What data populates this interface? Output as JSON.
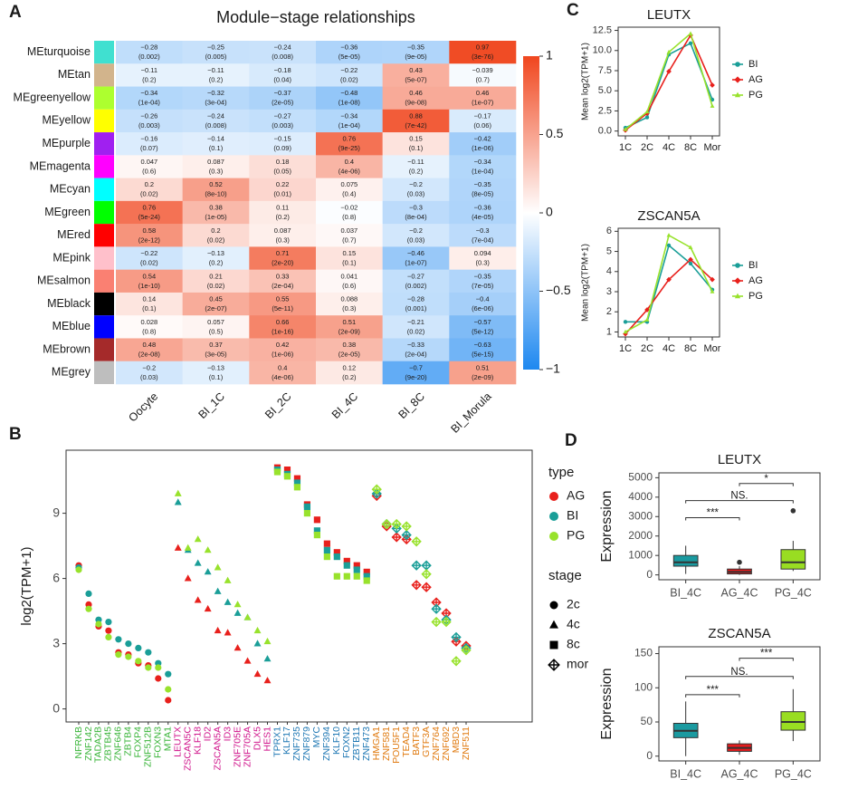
{
  "chart_data": [
    {
      "type": "heatmap",
      "panel": "A",
      "title": "Module−stage relationships",
      "columns": [
        "Oocyte",
        "BI_1C",
        "BI_2C",
        "BI_4C",
        "BI_8C",
        "BI_Morula"
      ],
      "rows": [
        {
          "name": "MEturquoise",
          "color": "#40e0d0",
          "values": [
            -0.28,
            -0.25,
            -0.24,
            -0.36,
            -0.35,
            0.97
          ],
          "value_labels": [
            "−0.28",
            "−0.25",
            "−0.24",
            "−0.36",
            "−0.35",
            "0.97"
          ],
          "p_labels": [
            "(0.002)",
            "(0.005)",
            "(0.008)",
            "(5e-05)",
            "(9e-05)",
            "(3e-76)"
          ]
        },
        {
          "name": "MEtan",
          "color": "#d2b48c",
          "values": [
            -0.11,
            -0.11,
            -0.18,
            -0.22,
            0.43,
            -0.039
          ],
          "value_labels": [
            "−0.11",
            "−0.11",
            "−0.18",
            "−0.22",
            "0.43",
            "−0.039"
          ],
          "p_labels": [
            "(0.2)",
            "(0.2)",
            "(0.04)",
            "(0.02)",
            "(5e-07)",
            "(0.7)"
          ]
        },
        {
          "name": "MEgreenyellow",
          "color": "#adff2f",
          "values": [
            -0.34,
            -0.32,
            -0.37,
            -0.48,
            0.46,
            0.46
          ],
          "value_labels": [
            "−0.34",
            "−0.32",
            "−0.37",
            "−0.48",
            "0.46",
            "0.46"
          ],
          "p_labels": [
            "(1e-04)",
            "(3e-04)",
            "(2e-05)",
            "(1e-08)",
            "(9e-08)",
            "(1e-07)"
          ]
        },
        {
          "name": "MEyellow",
          "color": "#ffff00",
          "values": [
            -0.26,
            -0.24,
            -0.27,
            -0.34,
            0.88,
            -0.17
          ],
          "value_labels": [
            "−0.26",
            "−0.24",
            "−0.27",
            "−0.34",
            "0.88",
            "−0.17"
          ],
          "p_labels": [
            "(0.003)",
            "(0.008)",
            "(0.003)",
            "(1e-04)",
            "(7e-42)",
            "(0.06)"
          ]
        },
        {
          "name": "MEpurple",
          "color": "#a020f0",
          "values": [
            -0.16,
            -0.14,
            -0.15,
            0.76,
            0.15,
            -0.42
          ],
          "value_labels": [
            "−0.16",
            "−0.14",
            "−0.15",
            "0.76",
            "0.15",
            "−0.42"
          ],
          "p_labels": [
            "(0.07)",
            "(0.1)",
            "(0.09)",
            "(9e-25)",
            "(0.1)",
            "(1e-06)"
          ]
        },
        {
          "name": "MEmagenta",
          "color": "#ff00ff",
          "values": [
            0.047,
            0.087,
            0.18,
            0.4,
            -0.11,
            -0.34
          ],
          "value_labels": [
            "0.047",
            "0.087",
            "0.18",
            "0.4",
            "−0.11",
            "−0.34"
          ],
          "p_labels": [
            "(0.6)",
            "(0.3)",
            "(0.05)",
            "(4e-06)",
            "(0.2)",
            "(1e-04)"
          ]
        },
        {
          "name": "MEcyan",
          "color": "#00ffff",
          "values": [
            0.2,
            0.52,
            0.22,
            0.075,
            -0.2,
            -0.35
          ],
          "value_labels": [
            "0.2",
            "0.52",
            "0.22",
            "0.075",
            "−0.2",
            "−0.35"
          ],
          "p_labels": [
            "(0.02)",
            "(8e-10)",
            "(0.01)",
            "(0.4)",
            "(0.03)",
            "(8e-05)"
          ]
        },
        {
          "name": "MEgreen",
          "color": "#00ff00",
          "values": [
            0.76,
            0.38,
            0.11,
            -0.02,
            -0.3,
            -0.36
          ],
          "value_labels": [
            "0.76",
            "0.38",
            "0.11",
            "−0.02",
            "−0.3",
            "−0.36"
          ],
          "p_labels": [
            "(5e-24)",
            "(1e-05)",
            "(0.2)",
            "(0.8)",
            "(8e-04)",
            "(4e-05)"
          ]
        },
        {
          "name": "MEred",
          "color": "#ff0000",
          "values": [
            0.58,
            0.2,
            0.087,
            0.037,
            -0.2,
            -0.3
          ],
          "value_labels": [
            "0.58",
            "0.2",
            "0.087",
            "0.037",
            "−0.2",
            "−0.3"
          ],
          "p_labels": [
            "(2e-12)",
            "(0.02)",
            "(0.3)",
            "(0.7)",
            "(0.03)",
            "(7e-04)"
          ]
        },
        {
          "name": "MEpink",
          "color": "#ffc0cb",
          "values": [
            -0.22,
            -0.13,
            0.71,
            0.15,
            -0.46,
            0.094
          ],
          "value_labels": [
            "−0.22",
            "−0.13",
            "0.71",
            "0.15",
            "−0.46",
            "0.094"
          ],
          "p_labels": [
            "(0.02)",
            "(0.2)",
            "(2e-20)",
            "(0.1)",
            "(1e-07)",
            "(0.3)"
          ]
        },
        {
          "name": "MEsalmon",
          "color": "#fa8072",
          "values": [
            0.54,
            0.21,
            0.33,
            0.041,
            -0.27,
            -0.35
          ],
          "value_labels": [
            "0.54",
            "0.21",
            "0.33",
            "0.041",
            "−0.27",
            "−0.35"
          ],
          "p_labels": [
            "(1e-10)",
            "(0.02)",
            "(2e-04)",
            "(0.6)",
            "(0.002)",
            "(7e-05)"
          ]
        },
        {
          "name": "MEblack",
          "color": "#000000",
          "values": [
            0.14,
            0.45,
            0.55,
            0.088,
            -0.28,
            -0.4
          ],
          "value_labels": [
            "0.14",
            "0.45",
            "0.55",
            "0.088",
            "−0.28",
            "−0.4"
          ],
          "p_labels": [
            "(0.1)",
            "(2e-07)",
            "(5e-11)",
            "(0.3)",
            "(0.001)",
            "(6e-06)"
          ]
        },
        {
          "name": "MEblue",
          "color": "#0000ff",
          "values": [
            0.028,
            0.057,
            0.66,
            0.51,
            -0.21,
            -0.57
          ],
          "value_labels": [
            "0.028",
            "0.057",
            "0.66",
            "0.51",
            "−0.21",
            "−0.57"
          ],
          "p_labels": [
            "(0.8)",
            "(0.5)",
            "(1e-16)",
            "(2e-09)",
            "(0.02)",
            "(5e-12)"
          ]
        },
        {
          "name": "MEbrown",
          "color": "#a52a2a",
          "values": [
            0.48,
            0.37,
            0.42,
            0.38,
            -0.33,
            -0.63
          ],
          "value_labels": [
            "0.48",
            "0.37",
            "0.42",
            "0.38",
            "−0.33",
            "−0.63"
          ],
          "p_labels": [
            "(2e-08)",
            "(3e-05)",
            "(1e-06)",
            "(2e-05)",
            "(2e-04)",
            "(5e-15)"
          ]
        },
        {
          "name": "MEgrey",
          "color": "#bebebe",
          "values": [
            -0.2,
            -0.13,
            0.4,
            0.12,
            -0.7,
            0.51
          ],
          "value_labels": [
            "−0.2",
            "−0.13",
            "0.4",
            "0.12",
            "−0.7",
            "0.51"
          ],
          "p_labels": [
            "(0.03)",
            "(0.1)",
            "(4e-06)",
            "(0.2)",
            "(9e-20)",
            "(2e-09)"
          ]
        }
      ],
      "colorbar": {
        "lim": [
          -1,
          1
        ],
        "colors": [
          "#1e88f0",
          "#ffffff",
          "#f0461e"
        ],
        "ticks": [
          1,
          0.5,
          0,
          {
            "value": -0.5,
            "label": "−0.5"
          },
          {
            "value": -1,
            "label": "−1"
          }
        ]
      }
    },
    {
      "type": "dot",
      "panel": "B",
      "ylabel": "log2(TPM+1)",
      "ylim": [
        -0.6,
        11.9
      ],
      "yticks": [
        0,
        3,
        6,
        9
      ],
      "series_title": "type",
      "stage_title": "stage",
      "series": [
        {
          "name": "AG",
          "color": "#e8201c",
          "values": [
            6.6,
            4.8,
            3.8,
            3.6,
            2.6,
            2.5,
            2.1,
            2.0,
            1.4,
            0.4,
            7.4,
            6.0,
            5.0,
            4.6,
            3.6,
            3.5,
            2.8,
            2.2,
            1.6,
            1.3,
            11.1,
            11.0,
            10.6,
            9.4,
            8.7,
            7.6,
            7.2,
            6.8,
            6.6,
            6.3,
            9.8,
            8.4,
            7.9,
            7.8,
            5.7,
            5.6,
            4.9,
            4.4,
            3.1,
            2.9
          ]
        },
        {
          "name": "BI",
          "color": "#1a9e98",
          "values": [
            6.5,
            5.3,
            4.1,
            4.0,
            3.2,
            3.0,
            2.8,
            2.6,
            2.1,
            1.6,
            9.5,
            7.3,
            6.7,
            6.3,
            5.4,
            4.9,
            4.4,
            4.2,
            3.0,
            2.3,
            11.0,
            10.8,
            10.4,
            9.3,
            8.2,
            7.3,
            7.0,
            6.6,
            6.4,
            6.1,
            9.9,
            8.5,
            8.3,
            8.0,
            6.6,
            6.6,
            4.6,
            4.1,
            3.3,
            2.8
          ]
        },
        {
          "name": "PG",
          "color": "#98e22c",
          "values": [
            6.4,
            4.6,
            3.9,
            3.3,
            2.5,
            2.4,
            2.2,
            1.9,
            1.9,
            0.9,
            9.9,
            7.4,
            7.8,
            7.3,
            6.5,
            5.9,
            4.8,
            4.2,
            3.6,
            3.1,
            10.9,
            10.7,
            10.2,
            9.0,
            8.0,
            7.0,
            6.1,
            6.1,
            6.1,
            5.9,
            10.1,
            8.5,
            8.5,
            8.4,
            7.7,
            6.2,
            4.0,
            4.0,
            2.2,
            2.7
          ]
        }
      ],
      "stages": [
        {
          "name": "2c",
          "marker": "circle",
          "label_color": "#3ab53a",
          "categories": [
            "NFRKB",
            "ZNF142",
            "TADA2B",
            "ZBTB45",
            "ZNF646",
            "ZBTB4",
            "FOXP4",
            "ZNF512B",
            "FOXN3",
            "MTA1"
          ]
        },
        {
          "name": "4c",
          "marker": "triangle",
          "label_color": "#d0168c",
          "categories": [
            "LEUTX",
            "ZSCAN5C",
            "KLF18",
            "ID2",
            "ZSCAN5A",
            "ID3",
            "ZNF705E",
            "ZNF705A",
            "DLX5",
            "HES1"
          ]
        },
        {
          "name": "8c",
          "marker": "square",
          "label_color": "#1f78b4",
          "categories": [
            "TPRX1",
            "KLF17",
            "ZNF735",
            "ZNF879",
            "MYC",
            "ZNF394",
            "KLF10",
            "FOXN2",
            "ZBTB11",
            "ZNF473"
          ]
        },
        {
          "name": "mor",
          "marker": "diamondplus",
          "label_color": "#e07b12",
          "categories": [
            "HMGA1",
            "ZNF581",
            "POU5F1",
            "TEAD4",
            "BATF3",
            "GTF3A",
            "ZNF764",
            "ZNF692",
            "MBD3",
            "ZNF511"
          ]
        }
      ]
    },
    {
      "type": "line",
      "panel": "C",
      "title": "LEUTX",
      "ylabel": "Mean log2(TPM+1)",
      "categories": [
        "1C",
        "2C",
        "4C",
        "8C",
        "Mor"
      ],
      "ylim": [
        -0.6,
        12.9
      ],
      "yticks": [
        {
          "value": 0,
          "label": "0.0"
        },
        2.5,
        {
          "value": 5,
          "label": "5.0"
        },
        7.5,
        {
          "value": 10,
          "label": "10.0"
        },
        12.5
      ],
      "series": [
        {
          "name": "BI",
          "color": "#1a9e98",
          "marker": "circle",
          "values": [
            0.4,
            1.7,
            9.5,
            10.9,
            3.9
          ]
        },
        {
          "name": "AG",
          "color": "#e8201c",
          "marker": "diamond",
          "values": [
            0.1,
            2.2,
            7.4,
            11.9,
            5.7
          ]
        },
        {
          "name": "PG",
          "color": "#98e22c",
          "marker": "triangle",
          "values": [
            0.2,
            2.4,
            9.8,
            12.1,
            3.1
          ]
        }
      ]
    },
    {
      "type": "line",
      "title": "ZSCAN5A",
      "ylabel": "Mean log2(TPM+1)",
      "categories": [
        "1C",
        "2C",
        "4C",
        "8C",
        "Mor"
      ],
      "ylim": [
        0.75,
        6.15
      ],
      "yticks": [
        1,
        2,
        3,
        4,
        5,
        6
      ],
      "series": [
        {
          "name": "BI",
          "color": "#1a9e98",
          "marker": "circle",
          "values": [
            1.5,
            1.5,
            5.3,
            4.4,
            3.1
          ]
        },
        {
          "name": "AG",
          "color": "#e8201c",
          "marker": "diamond",
          "values": [
            0.9,
            2.1,
            3.6,
            4.6,
            3.6
          ]
        },
        {
          "name": "PG",
          "color": "#98e22c",
          "marker": "triangle",
          "values": [
            1.0,
            1.6,
            5.8,
            5.2,
            3.0
          ]
        }
      ]
    },
    {
      "type": "box",
      "panel": "D",
      "title": "LEUTX",
      "ylabel": "Expression",
      "categories": [
        "BI_4C",
        "AG_4C",
        "PG_4C"
      ],
      "ylim": [
        -250,
        5250
      ],
      "yticks": [
        0,
        1000,
        2000,
        3000,
        4000,
        5000
      ],
      "boxes": [
        {
          "color": "#1a9aa0",
          "whisker_low": 50,
          "q1": 450,
          "median": 650,
          "q3": 1000,
          "whisker_high": 1500,
          "outliers": []
        },
        {
          "color": "#e41a1c",
          "whisker_low": 0,
          "q1": 50,
          "median": 150,
          "q3": 300,
          "whisker_high": 450,
          "outliers": [
            650
          ]
        },
        {
          "color": "#99dd22",
          "whisker_low": 200,
          "q1": 300,
          "median": 650,
          "q3": 1300,
          "whisker_high": 1750,
          "outliers": [
            3300
          ]
        }
      ],
      "comparisons": [
        {
          "pair": [
            0,
            1
          ],
          "label": "***"
        },
        {
          "pair": [
            0,
            2
          ],
          "label": "NS."
        },
        {
          "pair": [
            1,
            2
          ],
          "label": "*"
        }
      ]
    },
    {
      "type": "box",
      "title": "ZSCAN5A",
      "ylabel": "Expression",
      "categories": [
        "BI_4C",
        "AG_4C",
        "PG_4C"
      ],
      "ylim": [
        -7,
        160
      ],
      "yticks": [
        0,
        50,
        100,
        150
      ],
      "boxes": [
        {
          "color": "#1a9aa0",
          "whisker_low": 0,
          "q1": 27,
          "median": 37,
          "q3": 48,
          "whisker_high": 80,
          "outliers": []
        },
        {
          "color": "#e41a1c",
          "whisker_low": 2,
          "q1": 7,
          "median": 12,
          "q3": 18,
          "whisker_high": 23,
          "outliers": []
        },
        {
          "color": "#99dd22",
          "whisker_low": 22,
          "q1": 38,
          "median": 50,
          "q3": 65,
          "whisker_high": 98,
          "outliers": []
        }
      ],
      "comparisons": [
        {
          "pair": [
            0,
            1
          ],
          "label": "***"
        },
        {
          "pair": [
            0,
            2
          ],
          "label": "NS."
        },
        {
          "pair": [
            1,
            2
          ],
          "label": "***"
        }
      ]
    }
  ]
}
